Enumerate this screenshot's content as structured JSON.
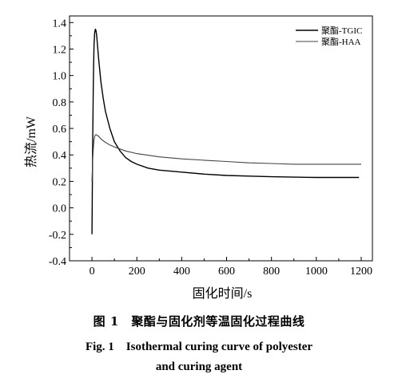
{
  "chart_data": {
    "type": "line",
    "xlabel": "固化时间/s",
    "ylabel": "热流/mW",
    "xlim": [
      -100,
      1250
    ],
    "ylim": [
      -0.4,
      1.45
    ],
    "xticks": [
      0,
      200,
      400,
      600,
      800,
      1000,
      1200
    ],
    "yticks": [
      -0.4,
      -0.2,
      0.0,
      0.2,
      0.4,
      0.6,
      0.8,
      1.0,
      1.2,
      1.4
    ],
    "xtick_labels": [
      "0",
      "200",
      "400",
      "600",
      "800",
      "1000",
      "1200"
    ],
    "ytick_labels": [
      "-0.4",
      "-0.2",
      "0.0",
      "0.2",
      "0.4",
      "0.6",
      "0.8",
      "1.0",
      "1.2",
      "1.4"
    ],
    "grid": false,
    "legend_position": "top-right",
    "series": [
      {
        "name": "聚酯-TGIC",
        "color": "#000000",
        "x": [
          0,
          3,
          6,
          9,
          12,
          15,
          18,
          21,
          25,
          30,
          40,
          50,
          60,
          80,
          100,
          125,
          150,
          175,
          200,
          250,
          300,
          400,
          500,
          600,
          700,
          800,
          900,
          1000,
          1100,
          1190
        ],
        "y": [
          -0.2,
          0.45,
          0.95,
          1.22,
          1.32,
          1.35,
          1.34,
          1.3,
          1.22,
          1.12,
          0.95,
          0.83,
          0.73,
          0.6,
          0.5,
          0.43,
          0.38,
          0.35,
          0.33,
          0.3,
          0.285,
          0.27,
          0.255,
          0.245,
          0.24,
          0.235,
          0.232,
          0.23,
          0.23,
          0.23
        ]
      },
      {
        "name": "聚酯-HAA",
        "color": "#444444",
        "x": [
          0,
          3,
          6,
          9,
          12,
          15,
          18,
          22,
          30,
          40,
          60,
          80,
          100,
          150,
          200,
          300,
          400,
          500,
          600,
          700,
          800,
          900,
          1000,
          1100,
          1200
        ],
        "y": [
          0.2,
          0.35,
          0.45,
          0.51,
          0.54,
          0.55,
          0.553,
          0.55,
          0.54,
          0.52,
          0.495,
          0.475,
          0.46,
          0.43,
          0.41,
          0.385,
          0.37,
          0.36,
          0.35,
          0.34,
          0.335,
          0.33,
          0.33,
          0.33,
          0.33
        ]
      }
    ]
  },
  "captions": {
    "cn": "图 1　聚酯与固化剂等温固化过程曲线",
    "en_line1": "Fig. 1　Isothermal curing curve of polyester",
    "en_line2": "and curing agent"
  }
}
